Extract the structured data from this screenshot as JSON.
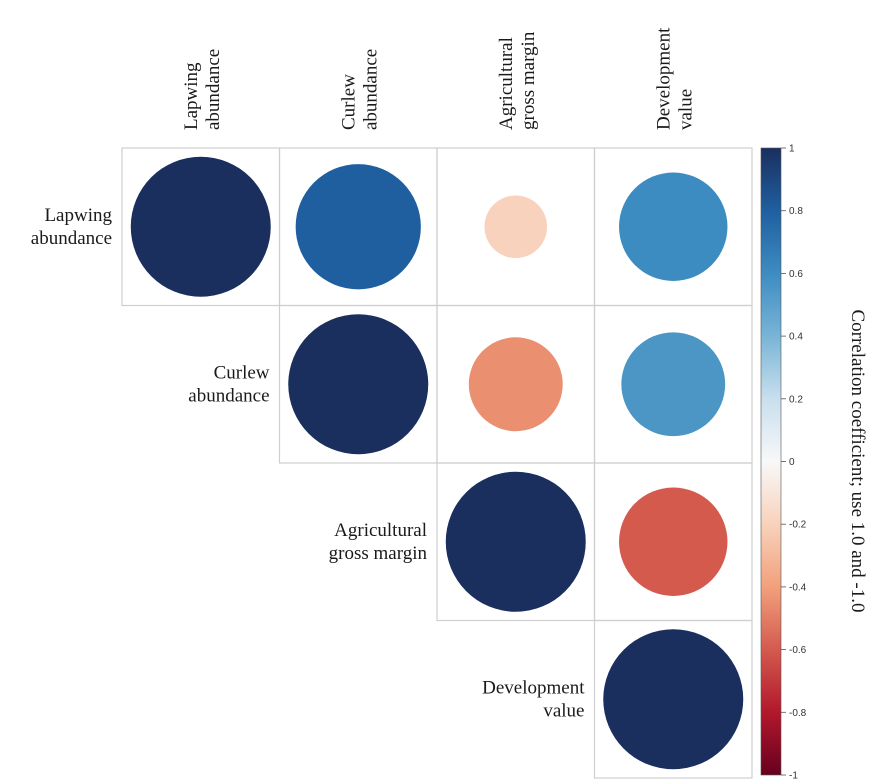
{
  "chart_data": {
    "type": "heatmap",
    "variables": [
      [
        "Lapwing",
        "abundance"
      ],
      [
        "Curlew",
        "abundance"
      ],
      [
        "Agricultural",
        "gross margin"
      ],
      [
        "Development",
        "value"
      ]
    ],
    "matrix": [
      [
        1.0,
        0.8,
        -0.2,
        0.6
      ],
      [
        0.8,
        1.0,
        -0.45,
        0.55
      ],
      [
        -0.2,
        -0.45,
        1.0,
        -0.6
      ],
      [
        0.6,
        0.55,
        -0.6,
        1.0
      ]
    ],
    "colorbar": {
      "title": "Correlation coefficient; use 1.0 and -1.0",
      "ticks": [
        "1",
        "0.8",
        "0.6",
        "0.4",
        "0.2",
        "0",
        "-0.2",
        "-0.4",
        "-0.6",
        "-0.8",
        "-1"
      ],
      "range": [
        -1,
        1
      ]
    },
    "palette": {
      "negative_end": "#67001f",
      "neutral": "#ffffff",
      "positive_end": "#1a2f5e"
    },
    "layout": "upper-triangle"
  }
}
